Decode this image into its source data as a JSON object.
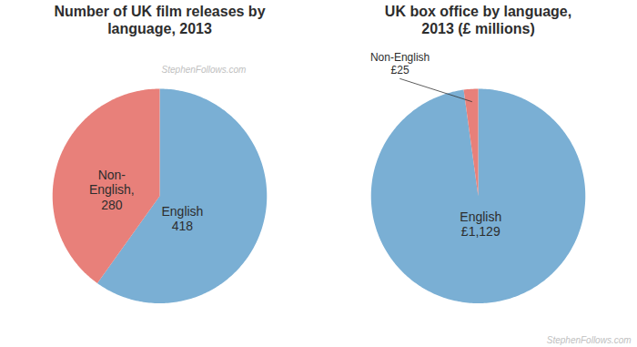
{
  "chart_data": [
    {
      "type": "pie",
      "title": "Number of UK film releases by\nlanguage, 2013",
      "categories": [
        "English",
        "Non-English"
      ],
      "values": [
        418,
        280
      ],
      "value_labels": [
        "English\n418",
        "Non-\nEnglish,\n280"
      ],
      "colors": [
        "#7aafd4",
        "#e8807a"
      ],
      "annotations": [
        "StephenFollows.com"
      ]
    },
    {
      "type": "pie",
      "title": "UK box office by language,\n2013 (£ millions)",
      "categories": [
        "English",
        "Non-English"
      ],
      "values": [
        1129,
        25
      ],
      "value_labels": [
        "English\n£1,129",
        "Non-English\n£25"
      ],
      "colors": [
        "#7aafd4",
        "#e8807a"
      ],
      "annotations": [
        "StephenFollows.com"
      ]
    }
  ]
}
